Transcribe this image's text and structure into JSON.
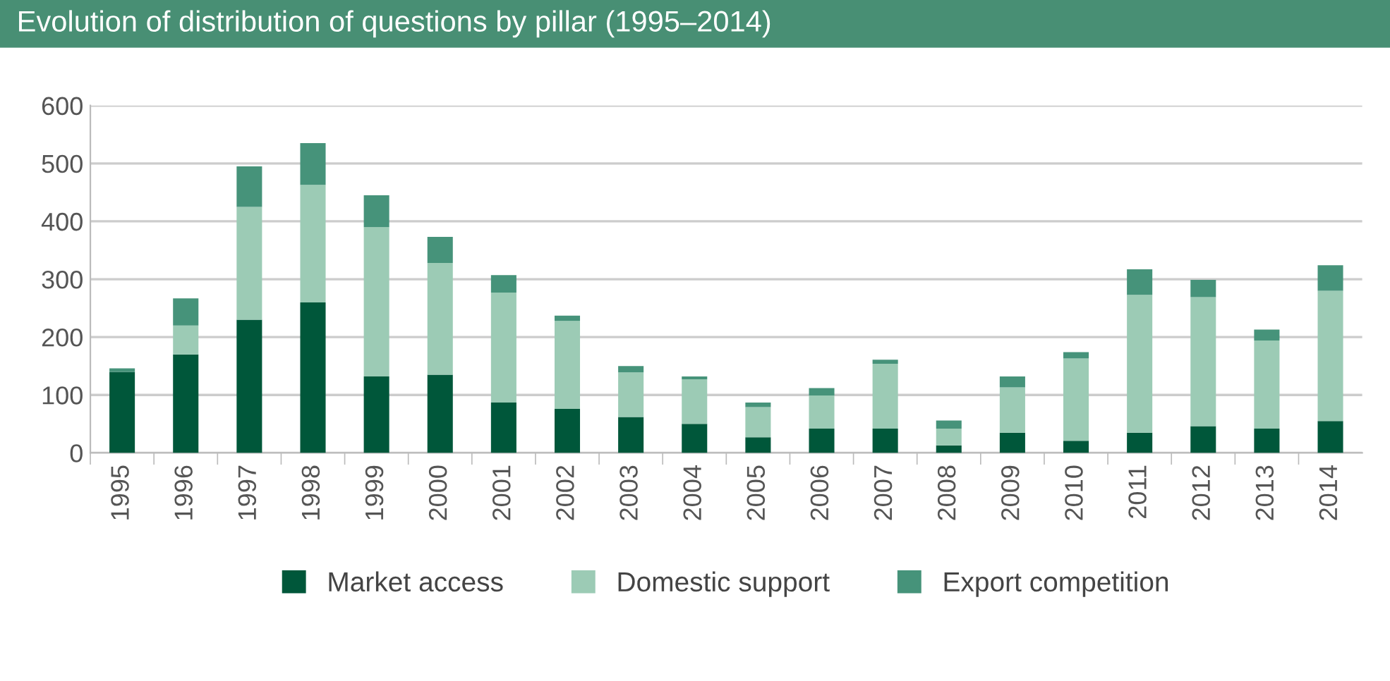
{
  "chart_data": {
    "type": "bar",
    "title": "Evolution of distribution of questions by pillar (1995–2014)",
    "categories": [
      "1995",
      "1996",
      "1997",
      "1998",
      "1999",
      "2000",
      "2001",
      "2002",
      "2003",
      "2004",
      "2005",
      "2006",
      "2007",
      "2008",
      "2009",
      "2010",
      "2011",
      "2012",
      "2013",
      "2014"
    ],
    "stacked": true,
    "series": [
      {
        "name": "Market access",
        "color": "#00573a",
        "values": [
          140,
          170,
          230,
          260,
          132,
          135,
          87,
          76,
          62,
          50,
          27,
          42,
          42,
          13,
          35,
          21,
          35,
          46,
          42,
          55
        ]
      },
      {
        "name": "Domestic support",
        "color": "#9ccbb5",
        "values": [
          0,
          50,
          195,
          203,
          258,
          193,
          190,
          152,
          77,
          77,
          52,
          57,
          112,
          29,
          78,
          142,
          238,
          223,
          152,
          225
        ]
      },
      {
        "name": "Export competition",
        "color": "#46937a",
        "values": [
          6,
          47,
          70,
          72,
          55,
          45,
          30,
          9,
          11,
          5,
          8,
          13,
          7,
          14,
          19,
          11,
          44,
          30,
          19,
          44
        ]
      }
    ],
    "ylim": [
      0,
      600
    ],
    "yticks": [
      0,
      100,
      200,
      300,
      400,
      500,
      600
    ],
    "grid": "y",
    "legend": "bottom"
  }
}
